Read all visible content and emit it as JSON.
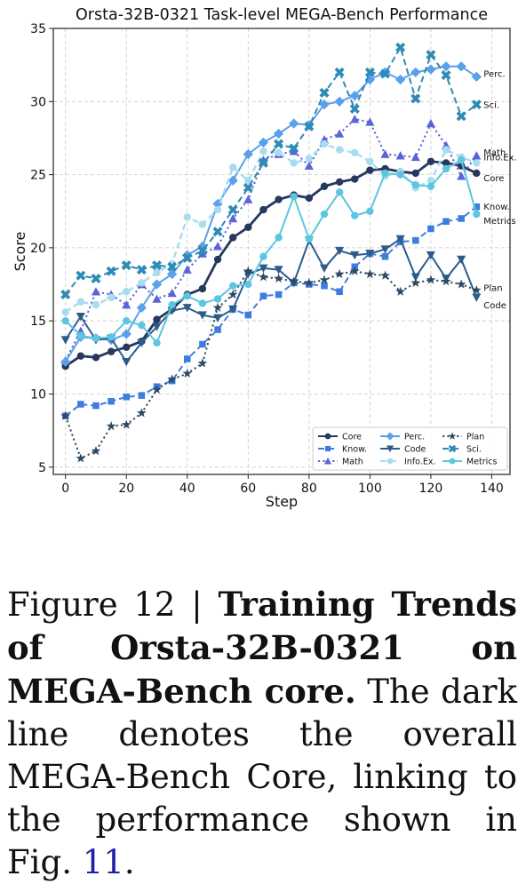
{
  "chart_data": {
    "type": "line",
    "title": "Orsta-32B-0321 Task-level MEGA-Bench Performance",
    "xlabel": "Step",
    "ylabel": "Score",
    "xlim": [
      -4,
      146
    ],
    "ylim": [
      4.5,
      35
    ],
    "xticks": [
      0,
      20,
      40,
      60,
      80,
      100,
      120,
      140
    ],
    "yticks": [
      5,
      10,
      15,
      20,
      25,
      30,
      35
    ],
    "grid": true,
    "legend": {
      "position": "bottom-right",
      "columns": 3
    },
    "x": [
      0,
      5,
      10,
      15,
      20,
      25,
      30,
      35,
      40,
      45,
      50,
      55,
      60,
      65,
      70,
      75,
      80,
      85,
      90,
      95,
      100,
      105,
      110,
      115,
      120,
      125,
      130,
      135
    ],
    "series": [
      {
        "name": "Core",
        "color": "#26385e",
        "marker": "circle",
        "dash": "solid",
        "width": 2.8,
        "values": [
          11.9,
          12.6,
          12.5,
          12.9,
          13.2,
          13.6,
          15.1,
          15.8,
          16.8,
          17.2,
          19.2,
          20.7,
          21.4,
          22.6,
          23.3,
          23.6,
          23.4,
          24.2,
          24.5,
          24.7,
          25.3,
          25.4,
          25.2,
          25.1,
          25.9,
          25.8,
          25.6,
          25.1
        ],
        "end_label": "Core"
      },
      {
        "name": "Know.",
        "color": "#3e7de0",
        "marker": "square",
        "dash": "dashed",
        "width": 2,
        "values": [
          8.5,
          9.3,
          9.2,
          9.5,
          9.8,
          9.9,
          10.5,
          10.9,
          12.4,
          13.4,
          14.4,
          15.8,
          15.4,
          16.7,
          16.8,
          17.6,
          17.5,
          17.4,
          17.0,
          18.7,
          19.6,
          19.4,
          20.4,
          20.5,
          21.3,
          21.8,
          22.0,
          22.8
        ],
        "end_label": "Know."
      },
      {
        "name": "Math",
        "color": "#5a64d8",
        "marker": "triangle-up",
        "dash": "dotted",
        "width": 2,
        "values": [
          12.3,
          14.3,
          17.0,
          16.8,
          16.1,
          17.5,
          16.5,
          16.9,
          18.5,
          19.6,
          20.1,
          22.0,
          23.3,
          26.0,
          26.4,
          26.6,
          25.6,
          27.4,
          27.8,
          28.8,
          28.6,
          26.4,
          26.3,
          26.2,
          28.5,
          27.0,
          24.9,
          26.3
        ],
        "end_label": "Math"
      },
      {
        "name": "Perc.",
        "color": "#5aa0ea",
        "marker": "diamond",
        "dash": "solid",
        "width": 2,
        "values": [
          12.2,
          13.9,
          13.8,
          13.7,
          14.1,
          15.9,
          17.5,
          18.2,
          19.5,
          20.1,
          23.0,
          24.6,
          26.4,
          27.2,
          27.8,
          28.5,
          28.4,
          29.8,
          30.0,
          30.4,
          31.5,
          32.0,
          31.5,
          32.0,
          32.2,
          32.4,
          32.4,
          31.7
        ],
        "end_label": "Perc."
      },
      {
        "name": "Code",
        "color": "#2c5c8a",
        "marker": "triangle-down",
        "dash": "solid",
        "width": 2,
        "values": [
          13.7,
          15.3,
          13.7,
          13.8,
          12.2,
          13.5,
          14.6,
          15.7,
          15.9,
          15.4,
          15.2,
          15.8,
          18.2,
          18.6,
          18.5,
          17.6,
          20.5,
          18.6,
          19.8,
          19.5,
          19.6,
          19.9,
          20.6,
          18.0,
          19.5,
          17.9,
          19.2,
          16.6
        ],
        "end_label": "Code"
      },
      {
        "name": "Info.Ex.",
        "color": "#a8dcef",
        "marker": "circle",
        "dash": "dashed",
        "width": 2.4,
        "values": [
          15.6,
          16.3,
          16.1,
          16.6,
          17.0,
          17.6,
          18.3,
          18.9,
          22.1,
          21.6,
          22.6,
          25.5,
          24.6,
          26.6,
          26.5,
          25.8,
          26.1,
          27.1,
          26.7,
          26.5,
          25.9,
          24.9,
          25.2,
          24.1,
          24.6,
          26.7,
          26.2,
          25.8
        ],
        "end_label": "Info.Ex."
      },
      {
        "name": "Plan",
        "color": "#2f4a66",
        "marker": "star",
        "dash": "dotted",
        "width": 2,
        "values": [
          8.5,
          5.6,
          6.1,
          7.8,
          7.9,
          8.7,
          10.3,
          11.0,
          11.4,
          12.1,
          15.9,
          16.8,
          18.4,
          18.0,
          17.9,
          17.7,
          17.6,
          17.8,
          18.2,
          18.4,
          18.2,
          18.1,
          17.0,
          17.6,
          17.8,
          17.7,
          17.5,
          17.1
        ],
        "end_label": "Plan"
      },
      {
        "name": "Sci.",
        "color": "#2e8ab6",
        "marker": "x",
        "dash": "dashed",
        "width": 2,
        "values": [
          16.8,
          18.1,
          17.9,
          18.4,
          18.8,
          18.5,
          18.8,
          18.7,
          19.3,
          19.8,
          21.1,
          22.6,
          24.1,
          25.8,
          27.1,
          26.8,
          28.3,
          30.6,
          32.0,
          29.5,
          32.0,
          31.9,
          33.7,
          30.2,
          33.2,
          31.8,
          29.0,
          29.8
        ],
        "end_label": "Sci."
      },
      {
        "name": "Metrics",
        "color": "#5cc6e0",
        "marker": "circle",
        "dash": "solid",
        "width": 2,
        "values": [
          15.0,
          14.0,
          13.8,
          13.9,
          15.0,
          14.7,
          13.5,
          16.1,
          16.7,
          16.2,
          16.5,
          17.4,
          17.5,
          19.4,
          20.7,
          23.5,
          20.6,
          22.3,
          23.8,
          22.2,
          22.5,
          25.1,
          25.0,
          24.3,
          24.2,
          25.4,
          26.0,
          22.3
        ],
        "end_label": "Metrics"
      }
    ]
  },
  "caption": {
    "label": "Figure 12 | ",
    "bold": "Training Trends of Orsta-32B-0321 on MEGA-Bench core.",
    "text": " The dark line denotes the overall MEGA-Bench Core, linking to the performance shown in Fig. ",
    "ref": "11",
    "tail": "."
  }
}
